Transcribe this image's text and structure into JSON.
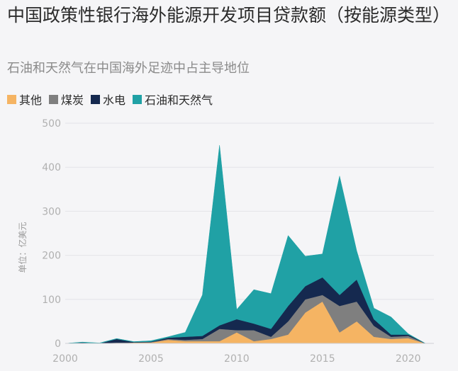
{
  "title": "中国政策性银行海外能源开发项目贷款额（按能源类型）",
  "subtitle": "石油和天然气在中国海外足迹中占主导地位",
  "chart_data": {
    "type": "area",
    "stacked": true,
    "x": [
      2000,
      2001,
      2002,
      2003,
      2004,
      2005,
      2006,
      2007,
      2008,
      2009,
      2010,
      2011,
      2012,
      2013,
      2014,
      2015,
      2016,
      2017,
      2018,
      2019,
      2020,
      2021
    ],
    "series": [
      {
        "name": "其他",
        "color": "#f5b463",
        "values": [
          0,
          1,
          0,
          0,
          2,
          2,
          8,
          5,
          5,
          5,
          25,
          5,
          10,
          20,
          70,
          95,
          25,
          50,
          15,
          10,
          12,
          0
        ]
      },
      {
        "name": "煤炭",
        "color": "#7f7f7f",
        "values": [
          0,
          0,
          0,
          2,
          0,
          1,
          2,
          3,
          5,
          28,
          5,
          25,
          5,
          30,
          30,
          15,
          60,
          45,
          25,
          5,
          5,
          0
        ]
      },
      {
        "name": "水电",
        "color": "#15294f",
        "values": [
          0,
          1,
          0,
          8,
          1,
          1,
          3,
          7,
          7,
          8,
          25,
          15,
          18,
          35,
          30,
          40,
          25,
          50,
          15,
          5,
          3,
          0
        ]
      },
      {
        "name": "石油和天然气",
        "color": "#20a1a5",
        "values": [
          0,
          1,
          1,
          1,
          1,
          2,
          2,
          10,
          93,
          409,
          22,
          77,
          80,
          160,
          68,
          53,
          270,
          65,
          25,
          40,
          2,
          0
        ]
      }
    ],
    "xticks": [
      2000,
      2005,
      2010,
      2015,
      2020
    ],
    "yticks": [
      0,
      100,
      200,
      300,
      400,
      500
    ],
    "xlim": [
      2000,
      2021.5
    ],
    "ylim": [
      0,
      500
    ],
    "ylabel": "单位：亿美元",
    "xlabel": "",
    "grid": true,
    "legend_position": "top-left"
  }
}
